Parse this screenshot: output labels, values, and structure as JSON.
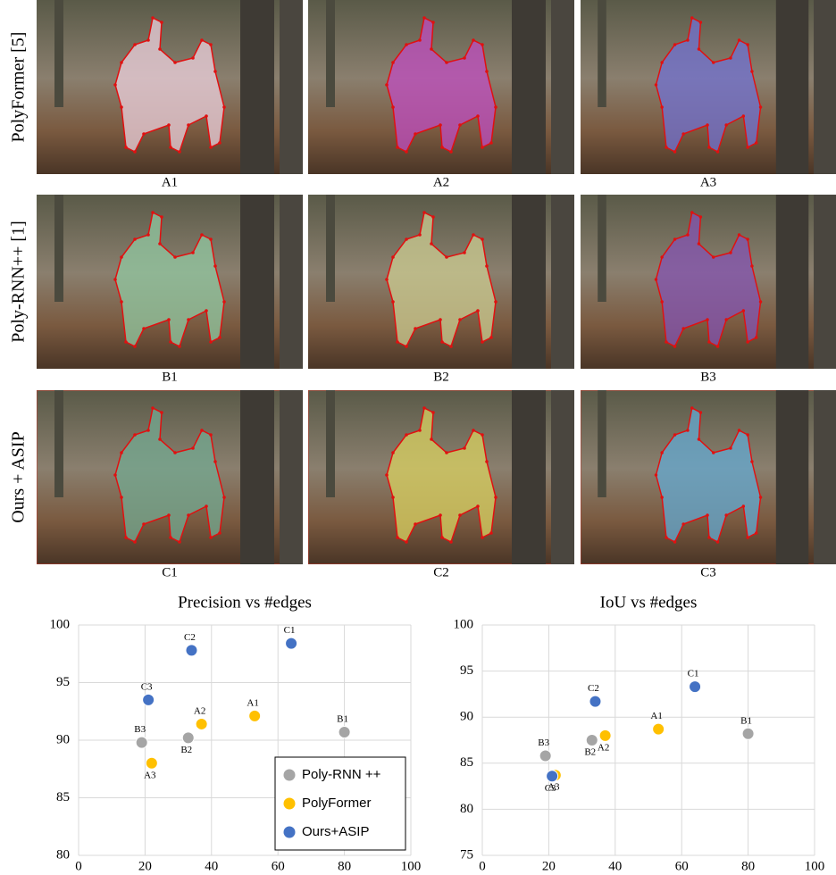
{
  "figure": {
    "row_labels": [
      "PolyFormer [5]",
      "Poly-RNN++ [1]",
      "Ours + ASIP"
    ],
    "panels": [
      [
        "A1",
        "A2",
        "A3"
      ],
      [
        "B1",
        "B2",
        "B3"
      ],
      [
        "C1",
        "C2",
        "C3"
      ]
    ]
  },
  "chart_data": [
    {
      "type": "scatter",
      "title": "Precision vs #edges",
      "xlim": [
        0,
        100
      ],
      "xticks": [
        0,
        20,
        40,
        60,
        80,
        100
      ],
      "ylim": [
        80,
        100
      ],
      "yticks": [
        80,
        85,
        90,
        95,
        100
      ],
      "grid": true,
      "legend": "lower right",
      "series": [
        {
          "name": "Poly-RNN ++",
          "color": "#a5a5a5",
          "x": [
            80,
            33,
            19
          ],
          "values": [
            90.7,
            90.2,
            89.8
          ],
          "labels": [
            "B1",
            "B2",
            "B3"
          ]
        },
        {
          "name": "PolyFormer",
          "color": "#ffc000",
          "x": [
            53,
            37,
            22
          ],
          "values": [
            92.1,
            91.4,
            88.0
          ],
          "labels": [
            "A1",
            "A2",
            "A3"
          ]
        },
        {
          "name": "Ours+ASIP",
          "color": "#4472c4",
          "x": [
            64,
            34,
            21
          ],
          "values": [
            98.4,
            97.8,
            93.5
          ],
          "labels": [
            "C1",
            "C2",
            "C3"
          ]
        }
      ]
    },
    {
      "type": "scatter",
      "title": "IoU vs #edges",
      "xlim": [
        0,
        100
      ],
      "xticks": [
        0,
        20,
        40,
        60,
        80,
        100
      ],
      "ylim": [
        75,
        100
      ],
      "yticks": [
        75,
        80,
        85,
        90,
        95,
        100
      ],
      "grid": true,
      "series": [
        {
          "name": "Poly-RNN ++",
          "color": "#a5a5a5",
          "x": [
            80,
            33,
            19
          ],
          "values": [
            88.2,
            87.5,
            85.8
          ],
          "labels": [
            "B1",
            "B2",
            "B3"
          ]
        },
        {
          "name": "PolyFormer",
          "color": "#ffc000",
          "x": [
            53,
            37,
            22
          ],
          "values": [
            88.7,
            88.0,
            83.7
          ],
          "labels": [
            "A1",
            "A2",
            "A3"
          ]
        },
        {
          "name": "Ours+ASIP",
          "color": "#4472c4",
          "x": [
            64,
            34,
            21
          ],
          "values": [
            93.3,
            91.7,
            83.6
          ],
          "labels": [
            "C1",
            "C2",
            "C3"
          ]
        }
      ]
    }
  ]
}
